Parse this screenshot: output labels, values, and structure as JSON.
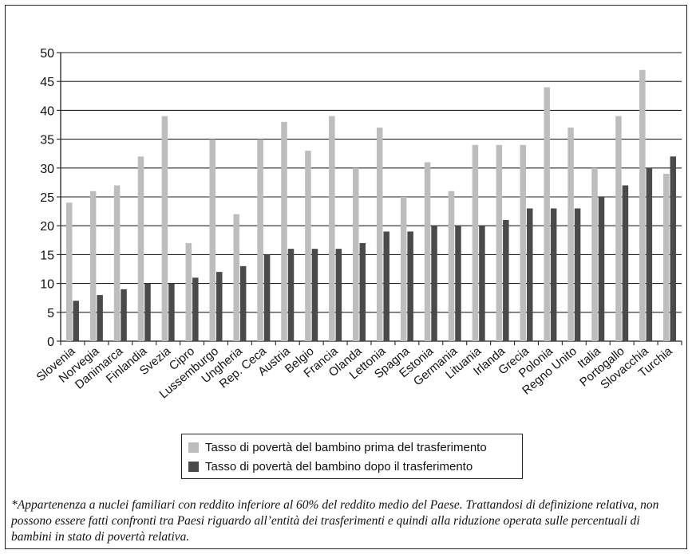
{
  "chart_data": {
    "type": "bar",
    "categories": [
      "Slovenia",
      "Norvegia",
      "Danimarca",
      "Finlandia",
      "Svezia",
      "Cipro",
      "Lussemburgo",
      "Ungheria",
      "Rep. Ceca",
      "Austria",
      "Belgio",
      "Francia",
      "Olanda",
      "Lettonia",
      "Spagna",
      "Estonia",
      "Germania",
      "Lituania",
      "Irlanda",
      "Grecia",
      "Polonia",
      "Regno Unito",
      "Italia",
      "Portogallo",
      "Slovacchia",
      "Turchia"
    ],
    "series": [
      {
        "name": "Tasso di povertà del bambino prima del trasferimento",
        "color": "#bdbdbd",
        "values": [
          24,
          26,
          27,
          32,
          39,
          17,
          35,
          22,
          35,
          38,
          33,
          39,
          30,
          37,
          25,
          31,
          26,
          34,
          34,
          34,
          44,
          37,
          30,
          39,
          47,
          29
        ]
      },
      {
        "name": "Tasso di povertà del bambino dopo il trasferimento",
        "color": "#4a4a4a",
        "values": [
          7,
          8,
          9,
          10,
          10,
          11,
          12,
          13,
          15,
          16,
          16,
          16,
          17,
          19,
          19,
          20,
          20,
          20,
          21,
          23,
          23,
          23,
          25,
          27,
          30,
          32
        ]
      }
    ],
    "ylim": [
      0,
      50
    ],
    "yticks": [
      "0",
      "5",
      "10",
      "15",
      "20",
      "25",
      "30",
      "35",
      "40",
      "45",
      "50"
    ],
    "grid": true,
    "xlabel": "",
    "ylabel": "",
    "legend_position": "bottom-center"
  },
  "footnote": "*Appartenenza a nuclei familiari con reddito inferiore al 60% del reddito medio del Paese. Trattandosi di definizione relativa, non possono essere fatti confronti tra Paesi riguardo all’entità dei trasferimenti e quindi alla riduzione operata sulle percentuali di bambini in stato di povertà relativa."
}
